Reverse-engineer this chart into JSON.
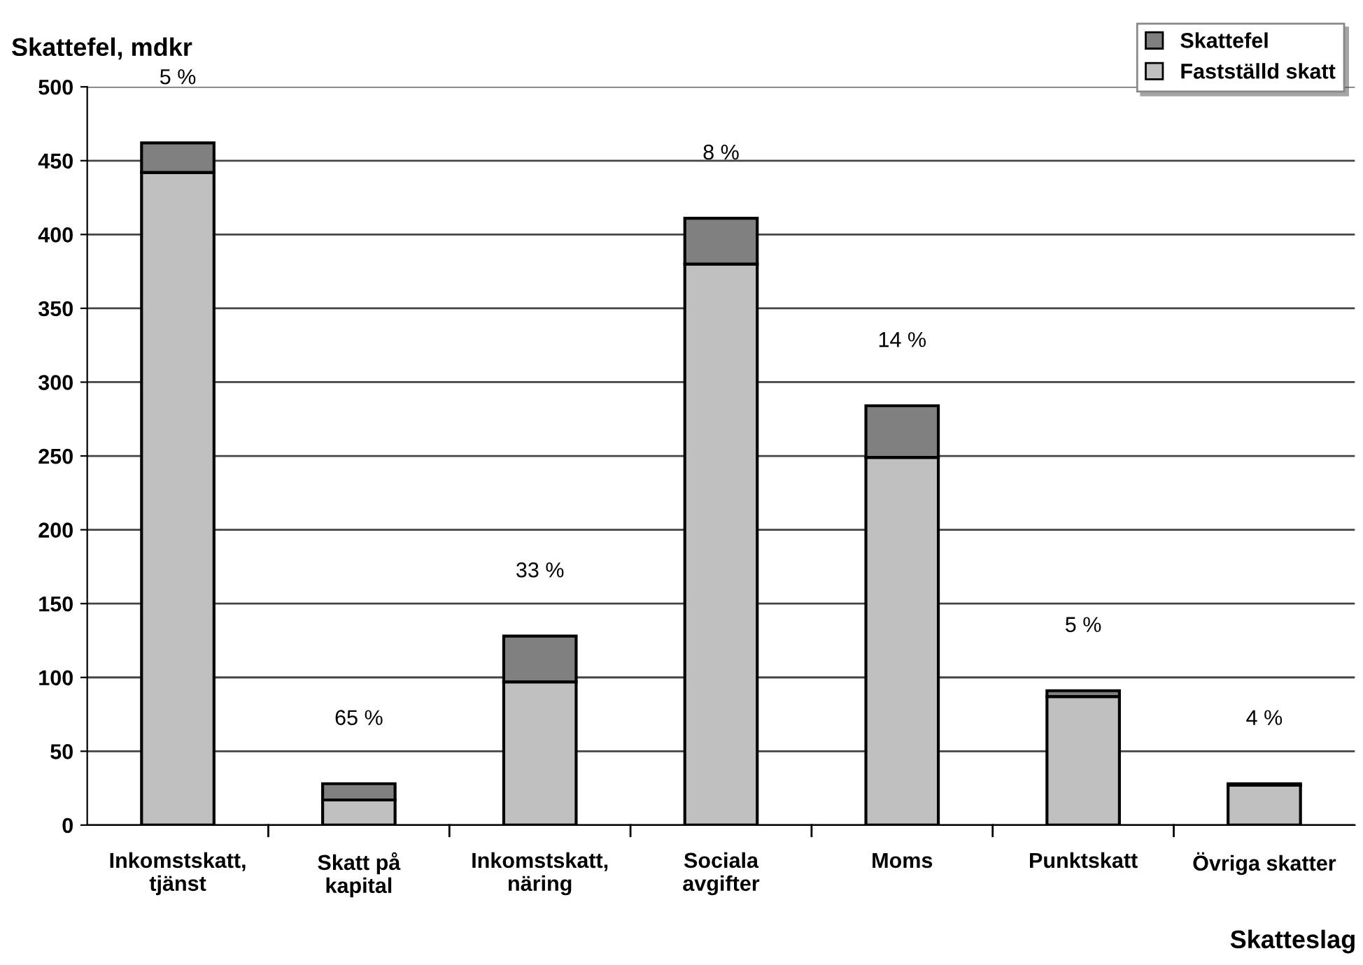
{
  "chart_data": {
    "type": "bar",
    "stacked": true,
    "ylabel": "Skattefel, mdkr",
    "xlabel": "Skatteslag",
    "categories": [
      "Inkomstskatt,\ntjänst",
      "Skatt på\nkapital",
      "Inkomstskatt,\nnäring",
      "Sociala\navgifter",
      "Moms",
      "Punktskatt",
      "Övriga skatter"
    ],
    "series": [
      {
        "name": "Fastställd skatt",
        "color": "#c0c0c0",
        "values": [
          442,
          17,
          97,
          380,
          249,
          87,
          27
        ]
      },
      {
        "name": "Skattefel",
        "color": "#808080",
        "values": [
          20,
          11,
          31,
          31,
          35,
          4,
          1
        ]
      }
    ],
    "annotations": [
      {
        "text": "5 %",
        "x": "Inkomstskatt,\ntjänst",
        "y": 462
      },
      {
        "text": "65 %",
        "x": "Skatt på\nkapital",
        "y": 28
      },
      {
        "text": "33 %",
        "x": "Inkomstskatt,\nnäring",
        "y": 128
      },
      {
        "text": "8 %",
        "x": "Sociala\navgifter",
        "y": 411
      },
      {
        "text": "14 %",
        "x": "Moms",
        "y": 284
      },
      {
        "text": "5 %",
        "x": "Punktskatt",
        "y": 91
      },
      {
        "text": "4 %",
        "x": "Övriga skatter",
        "y": 28
      }
    ],
    "ylim": [
      0,
      500
    ],
    "yticks": [
      0,
      50,
      100,
      150,
      200,
      250,
      300,
      350,
      400,
      450,
      500
    ],
    "grid": "y",
    "legend": "top right"
  }
}
